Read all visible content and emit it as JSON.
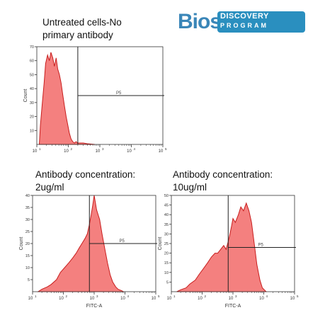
{
  "logo": {
    "text": "Bioss",
    "line1": "DISCOVERY",
    "line2": "PROGRAM"
  },
  "chart_data": [
    {
      "type": "area",
      "title": "Untreated cells-No\nprimary antibody",
      "xlabel": "",
      "ylabel": "Count",
      "x_scale": "log",
      "xlim": [
        10,
        100000
      ],
      "x_ticks": [
        "10",
        "10",
        "10",
        "10",
        "10"
      ],
      "x_tick_exp": [
        "1",
        "2",
        "3",
        "4",
        "5"
      ],
      "ylim": [
        0,
        70
      ],
      "y_ticks": [
        "10",
        "20",
        "30",
        "40",
        "50",
        "60",
        "70"
      ],
      "gate_label": "P5",
      "gate_x": 200,
      "gate_y": 35,
      "fill_color": "#f4807f",
      "stroke_color": "#c81e1e",
      "x": [
        12,
        13,
        15,
        17,
        19,
        22,
        25,
        28,
        32,
        36,
        41,
        46,
        52,
        59,
        66,
        75,
        85,
        96,
        108,
        122,
        138,
        156,
        176,
        200,
        250,
        300,
        400,
        500,
        700
      ],
      "y": [
        0,
        14,
        30,
        44,
        58,
        64,
        60,
        66,
        62,
        56,
        62,
        54,
        50,
        44,
        36,
        28,
        20,
        14,
        8,
        4,
        2,
        1,
        2,
        1,
        1,
        1,
        0.5,
        0.3,
        0
      ]
    },
    {
      "type": "area",
      "title": "Antibody concentration:\n2ug/ml",
      "xlabel": "FITC-A",
      "ylabel": "Count",
      "x_scale": "log",
      "xlim": [
        10,
        100000
      ],
      "x_ticks": [
        "10",
        "10",
        "10",
        "10",
        "10"
      ],
      "x_tick_exp": [
        "1",
        "2",
        "3",
        "4",
        "5"
      ],
      "ylim": [
        0,
        40
      ],
      "y_ticks": [
        "5",
        "10",
        "15",
        "20",
        "25",
        "30",
        "35",
        "40"
      ],
      "gate_label": "P5",
      "gate_x": 700,
      "gate_y": 20,
      "fill_color": "#f4807f",
      "stroke_color": "#c81e1e",
      "x": [
        15,
        20,
        30,
        40,
        60,
        80,
        110,
        150,
        200,
        260,
        320,
        400,
        500,
        600,
        700,
        800,
        900,
        1000,
        1200,
        1500,
        1800,
        2200,
        2700,
        3300,
        4000,
        5000,
        6000,
        7500,
        9000
      ],
      "y": [
        0,
        1,
        2,
        3,
        5,
        8,
        10,
        12,
        14,
        16,
        18,
        20,
        22,
        24,
        28,
        32,
        36,
        40,
        34,
        30,
        24,
        18,
        12,
        7,
        4,
        2,
        1,
        0.5,
        0
      ]
    },
    {
      "type": "area",
      "title": "Antibody concentration:\n10ug/ml",
      "xlabel": "FITC-A",
      "ylabel": "Count",
      "x_scale": "log",
      "xlim": [
        10,
        100000
      ],
      "x_ticks": [
        "10",
        "10",
        "10",
        "10",
        "10"
      ],
      "x_tick_exp": [
        "1",
        "2",
        "3",
        "4",
        "5"
      ],
      "ylim": [
        0,
        50
      ],
      "y_ticks": [
        "5",
        "10",
        "15",
        "20",
        "25",
        "30",
        "35",
        "40",
        "45",
        "50"
      ],
      "gate_label": "P5",
      "gate_x": 700,
      "gate_y": 23,
      "fill_color": "#f4807f",
      "stroke_color": "#c81e1e",
      "x": [
        15,
        20,
        30,
        40,
        60,
        80,
        110,
        150,
        200,
        260,
        320,
        400,
        500,
        600,
        700,
        800,
        900,
        1000,
        1200,
        1500,
        1800,
        2200,
        2700,
        3300,
        4000,
        5000,
        6000,
        7500,
        9000,
        12000
      ],
      "y": [
        0,
        1,
        2,
        4,
        6,
        9,
        12,
        15,
        18,
        20,
        20,
        22,
        24,
        22,
        26,
        30,
        34,
        38,
        36,
        40,
        44,
        42,
        46,
        42,
        36,
        24,
        14,
        6,
        2,
        0
      ]
    }
  ]
}
